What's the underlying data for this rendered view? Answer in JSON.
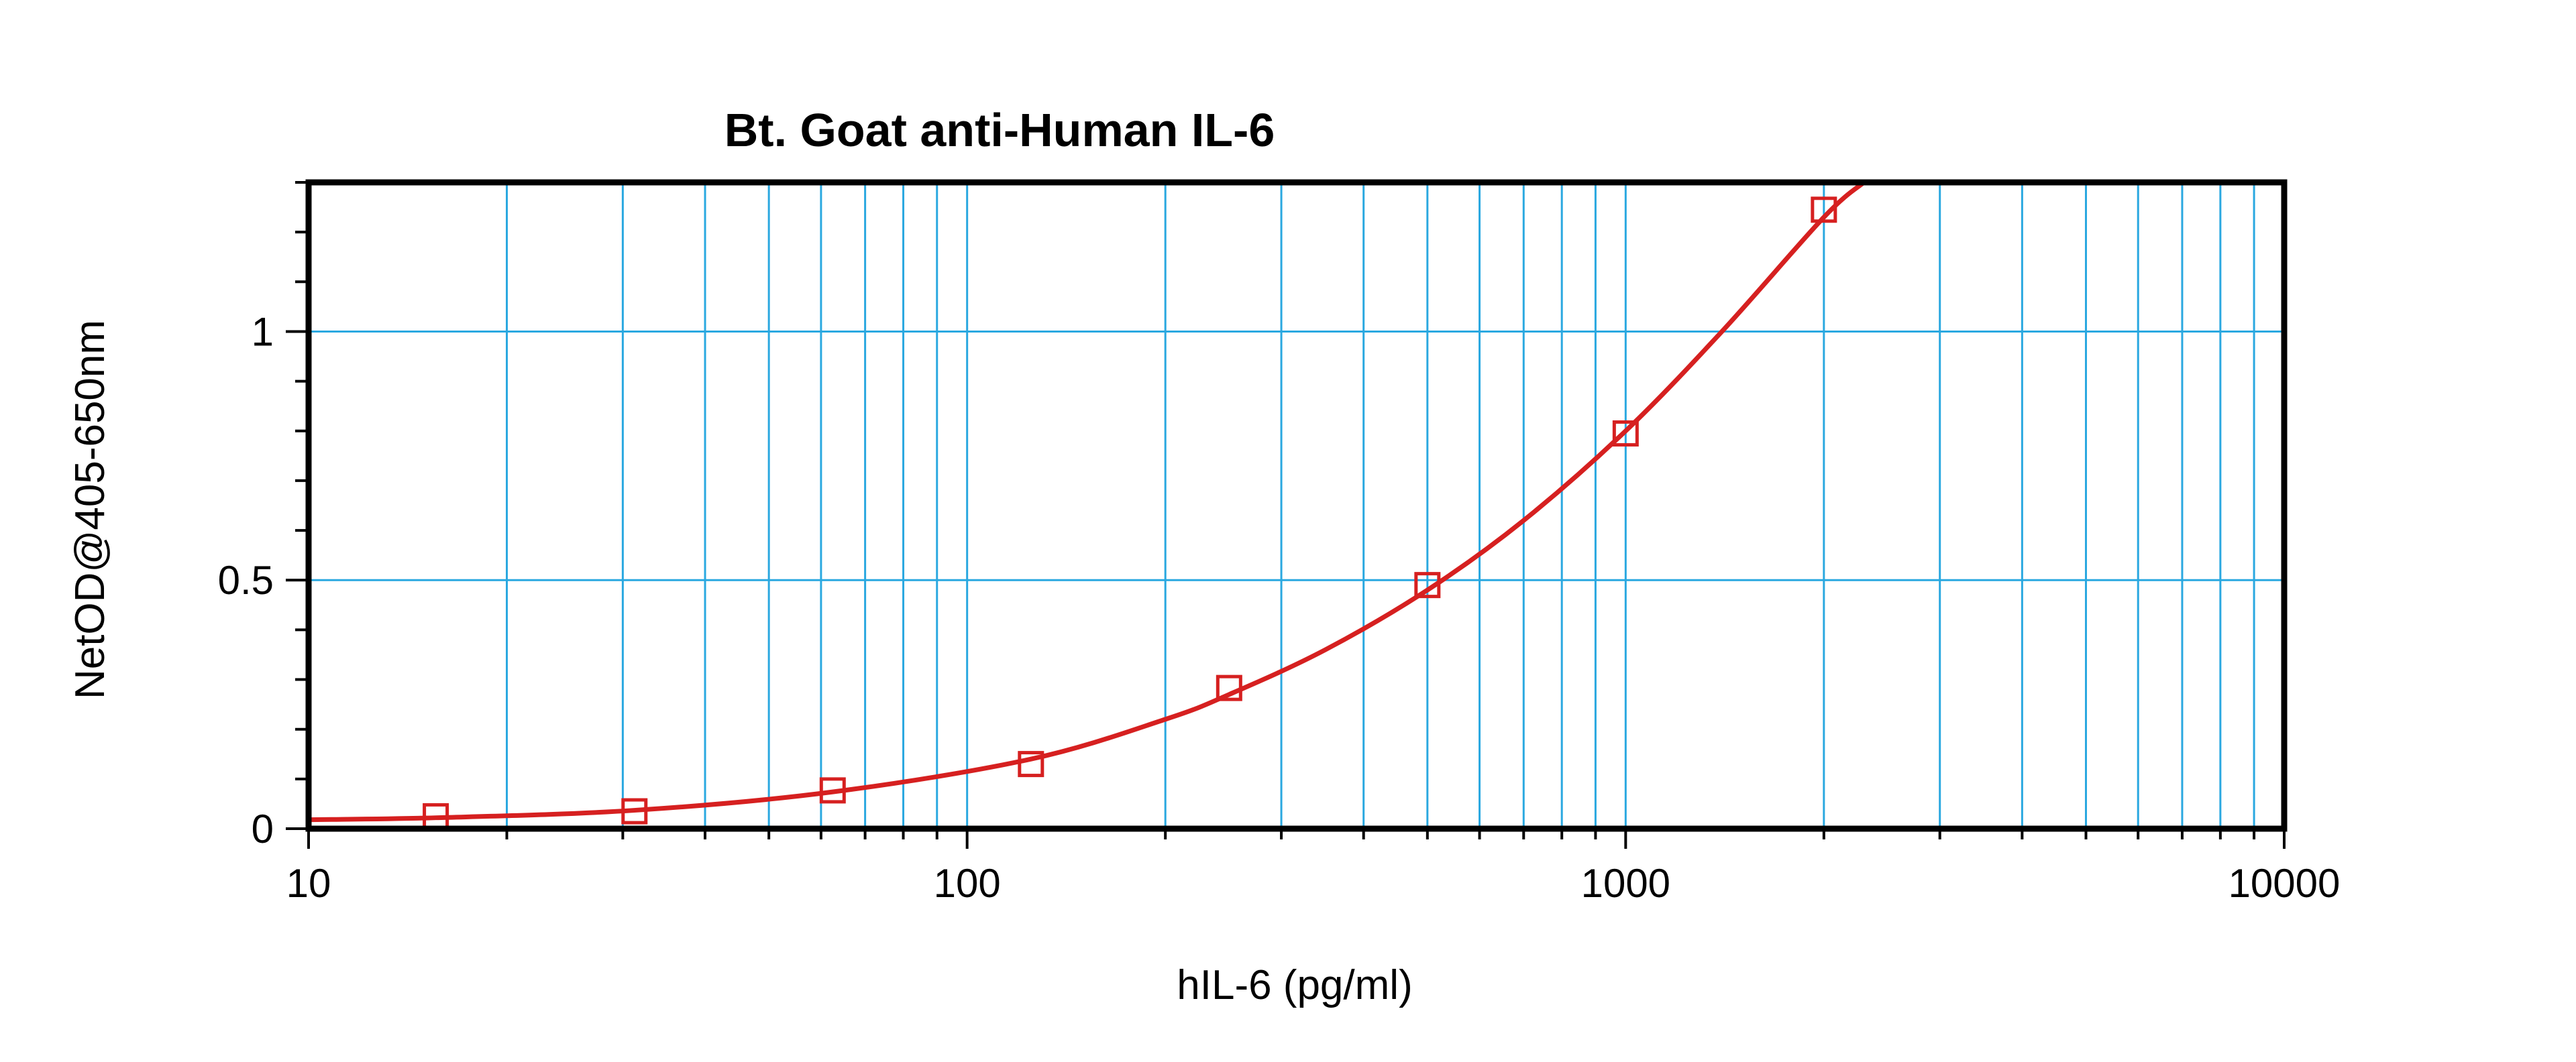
{
  "chart_data": {
    "type": "scatter",
    "title": "Bt. Goat anti-Human IL-6",
    "xlabel": "hIL-6 (pg/ml)",
    "ylabel": "NetOD@405-650nm",
    "x_scale": "log",
    "xlim": [
      10,
      10000
    ],
    "ylim": [
      0,
      1.3
    ],
    "x_ticks": [
      10,
      100,
      1000,
      10000
    ],
    "x_tick_labels": [
      "10",
      "100",
      "1000",
      "10000"
    ],
    "y_ticks": [
      0,
      0.5,
      1
    ],
    "y_tick_labels": [
      "0",
      "0.5",
      "1"
    ],
    "grid": true,
    "legend": "none",
    "series": [
      {
        "marker": "open-square",
        "x": [
          15.6,
          31.25,
          62.5,
          125,
          250,
          500,
          1000,
          2000
        ],
        "y": [
          0.025,
          0.035,
          0.077,
          0.13,
          0.283,
          0.49,
          0.795,
          1.245
        ]
      }
    ],
    "fit_curve": {
      "type": "smooth-fit",
      "x": [
        10,
        15.6,
        31.25,
        62.5,
        125,
        200,
        250,
        350,
        500,
        700,
        1000,
        1400,
        2000,
        2300
      ],
      "y": [
        0.018,
        0.022,
        0.037,
        0.074,
        0.14,
        0.22,
        0.27,
        0.36,
        0.48,
        0.62,
        0.8,
        1.0,
        1.23,
        1.3
      ]
    },
    "colors": {
      "series": "#d62020",
      "grid": "#2aa8e0",
      "axes": "#000000",
      "background": "#ffffff"
    }
  }
}
